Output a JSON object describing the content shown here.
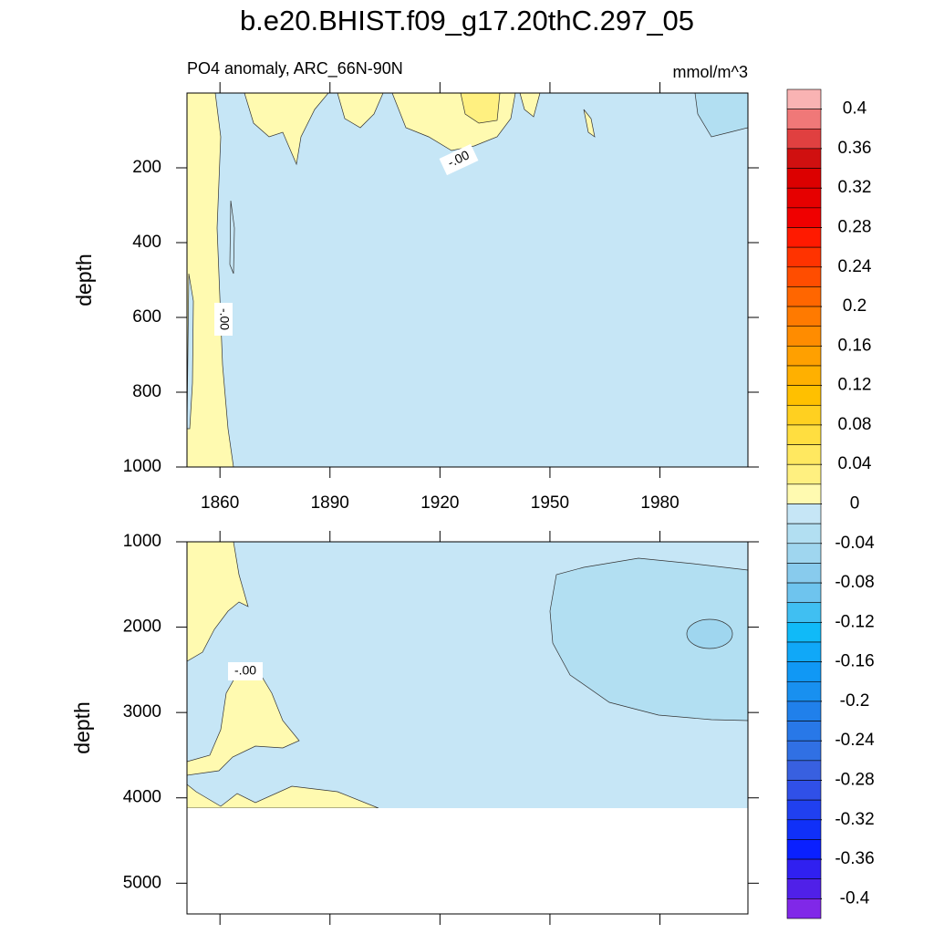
{
  "title": "b.e20.BHIST.f09_g17.20thC.297_05",
  "chart_data": [
    {
      "type": "contour",
      "subtitle": "PO4 anomaly, ARC_66N-90N",
      "units": "mmol/m^3",
      "ylabel": "depth",
      "xlim": [
        1851,
        2004
      ],
      "xticks": [
        1860,
        1890,
        1920,
        1950,
        1980
      ],
      "xtick_labels": true,
      "ylim": [
        0,
        1000
      ],
      "yticks": [
        200,
        400,
        600,
        800,
        1000
      ],
      "contour_labels": [
        "-.00",
        "-.00"
      ]
    },
    {
      "type": "contour",
      "ylabel": "depth",
      "xlim": [
        1851,
        2004
      ],
      "xticks": [
        1860,
        1890,
        1920,
        1950,
        1980
      ],
      "xtick_labels": false,
      "ylim": [
        1000,
        5360
      ],
      "yticks": [
        1000,
        2000,
        3000,
        4000,
        5000
      ],
      "contour_labels": [
        "-.00"
      ]
    }
  ],
  "colorbar": {
    "colors": [
      "#f9b3b3",
      "#f07878",
      "#e04040",
      "#d01010",
      "#dc0000",
      "#e60000",
      "#f00000",
      "#ff1a00",
      "#ff3300",
      "#ff4d00",
      "#ff6600",
      "#ff7a00",
      "#ff8c00",
      "#ffa000",
      "#ffb000",
      "#ffc000",
      "#ffd020",
      "#ffde40",
      "#ffe860",
      "#fff080",
      "#fffab0",
      "#c6e6f6",
      "#b2dff2",
      "#9fd6ef",
      "#88cbed",
      "#6ec4ee",
      "#40bff2",
      "#10baf8",
      "#10a8f8",
      "#1098f5",
      "#1890f0",
      "#2080eb",
      "#2878e8",
      "#3070e4",
      "#3860e0",
      "#3050e8",
      "#2040f0",
      "#1030f8",
      "#0a20ff",
      "#3020f0",
      "#5020e8",
      "#8028e8"
    ],
    "ticks": [
      0.4,
      0.36,
      0.32,
      0.28,
      0.24,
      0.2,
      0.16,
      0.12,
      0.08,
      0.04,
      0,
      -0.04,
      -0.08,
      -0.12,
      -0.16,
      -0.2,
      -0.24,
      -0.28,
      -0.32,
      -0.36,
      -0.4
    ]
  }
}
